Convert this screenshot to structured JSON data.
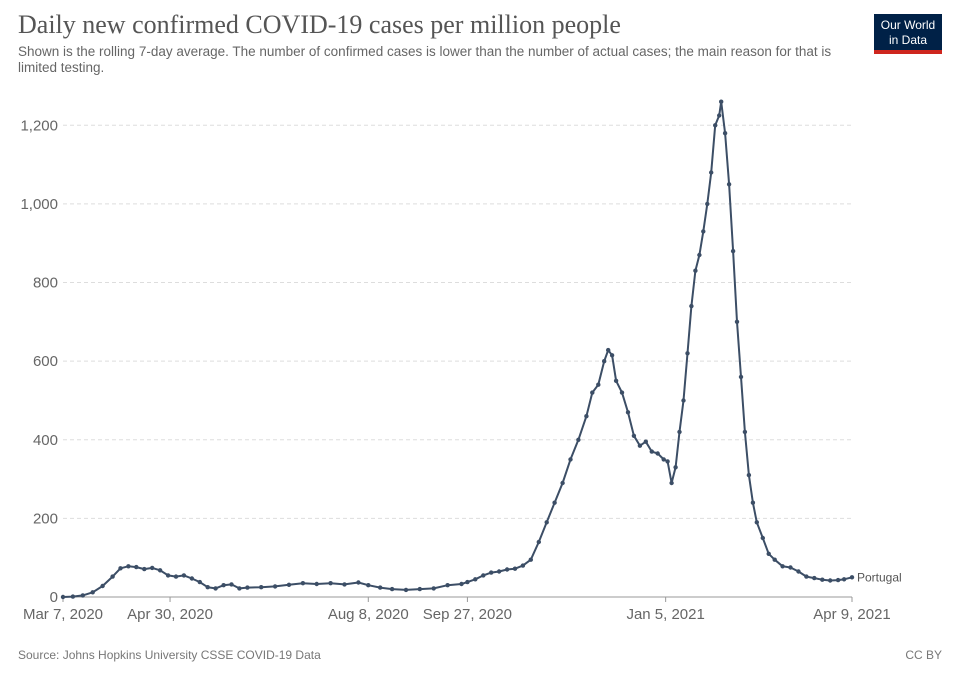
{
  "chart_data": {
    "type": "line",
    "title": "Daily new confirmed COVID-19 cases per million people",
    "subtitle": "Shown is the rolling 7-day average. The number of confirmed cases is lower than the number of actual cases; the main reason for that is limited testing.",
    "source": "Source: Johns Hopkins University CSSE COVID-19 Data",
    "license": "CC BY",
    "logo_text": [
      "Our World",
      "in Data"
    ],
    "colors": {
      "series": "#3c4e66",
      "grid": "#dddddd",
      "logo_bg": "#002147",
      "logo_accent": "#ce261e"
    },
    "x_range": [
      "2020-03-07",
      "2021-04-09"
    ],
    "ylim": [
      0,
      1300
    ],
    "y_ticks": [
      {
        "value": 0,
        "label": "0"
      },
      {
        "value": 200,
        "label": "200"
      },
      {
        "value": 400,
        "label": "400"
      },
      {
        "value": 600,
        "label": "600"
      },
      {
        "value": 800,
        "label": "800"
      },
      {
        "value": 1000,
        "label": "1,000"
      },
      {
        "value": 1200,
        "label": "1,200"
      }
    ],
    "x_ticks": [
      {
        "date": "2020-03-07",
        "label": "Mar 7, 2020"
      },
      {
        "date": "2020-04-30",
        "label": "Apr 30, 2020"
      },
      {
        "date": "2020-08-08",
        "label": "Aug 8, 2020"
      },
      {
        "date": "2020-09-27",
        "label": "Sep 27, 2020"
      },
      {
        "date": "2021-01-05",
        "label": "Jan 5, 2021"
      },
      {
        "date": "2021-04-09",
        "label": "Apr 9, 2021"
      }
    ],
    "grid": true,
    "series": [
      {
        "name": "Portugal",
        "points": [
          [
            "2020-03-07",
            0
          ],
          [
            "2020-03-12",
            1
          ],
          [
            "2020-03-17",
            4
          ],
          [
            "2020-03-22",
            12
          ],
          [
            "2020-03-27",
            28
          ],
          [
            "2020-04-01",
            52
          ],
          [
            "2020-04-05",
            73
          ],
          [
            "2020-04-09",
            78
          ],
          [
            "2020-04-13",
            76
          ],
          [
            "2020-04-17",
            71
          ],
          [
            "2020-04-21",
            74
          ],
          [
            "2020-04-25",
            68
          ],
          [
            "2020-04-29",
            55
          ],
          [
            "2020-05-03",
            52
          ],
          [
            "2020-05-07",
            55
          ],
          [
            "2020-05-11",
            47
          ],
          [
            "2020-05-15",
            38
          ],
          [
            "2020-05-19",
            25
          ],
          [
            "2020-05-23",
            22
          ],
          [
            "2020-05-27",
            30
          ],
          [
            "2020-05-31",
            32
          ],
          [
            "2020-06-04",
            22
          ],
          [
            "2020-06-08",
            24
          ],
          [
            "2020-06-15",
            25
          ],
          [
            "2020-06-22",
            27
          ],
          [
            "2020-06-29",
            31
          ],
          [
            "2020-07-06",
            35
          ],
          [
            "2020-07-13",
            33
          ],
          [
            "2020-07-20",
            35
          ],
          [
            "2020-07-27",
            32
          ],
          [
            "2020-08-03",
            37
          ],
          [
            "2020-08-08",
            30
          ],
          [
            "2020-08-14",
            24
          ],
          [
            "2020-08-20",
            20
          ],
          [
            "2020-08-27",
            18
          ],
          [
            "2020-09-03",
            20
          ],
          [
            "2020-09-10",
            22
          ],
          [
            "2020-09-17",
            30
          ],
          [
            "2020-09-24",
            33
          ],
          [
            "2020-09-27",
            38
          ],
          [
            "2020-10-01",
            45
          ],
          [
            "2020-10-05",
            55
          ],
          [
            "2020-10-09",
            62
          ],
          [
            "2020-10-13",
            65
          ],
          [
            "2020-10-17",
            70
          ],
          [
            "2020-10-21",
            72
          ],
          [
            "2020-10-25",
            80
          ],
          [
            "2020-10-29",
            95
          ],
          [
            "2020-11-02",
            140
          ],
          [
            "2020-11-06",
            190
          ],
          [
            "2020-11-10",
            240
          ],
          [
            "2020-11-14",
            290
          ],
          [
            "2020-11-18",
            350
          ],
          [
            "2020-11-22",
            400
          ],
          [
            "2020-11-26",
            460
          ],
          [
            "2020-11-29",
            520
          ],
          [
            "2020-12-02",
            540
          ],
          [
            "2020-12-05",
            600
          ],
          [
            "2020-12-07",
            628
          ],
          [
            "2020-12-09",
            615
          ],
          [
            "2020-12-11",
            550
          ],
          [
            "2020-12-14",
            520
          ],
          [
            "2020-12-17",
            470
          ],
          [
            "2020-12-20",
            410
          ],
          [
            "2020-12-23",
            385
          ],
          [
            "2020-12-26",
            395
          ],
          [
            "2020-12-29",
            370
          ],
          [
            "2021-01-01",
            365
          ],
          [
            "2021-01-04",
            350
          ],
          [
            "2021-01-06",
            345
          ],
          [
            "2021-01-08",
            290
          ],
          [
            "2021-01-10",
            330
          ],
          [
            "2021-01-12",
            420
          ],
          [
            "2021-01-14",
            500
          ],
          [
            "2021-01-16",
            620
          ],
          [
            "2021-01-18",
            740
          ],
          [
            "2021-01-20",
            830
          ],
          [
            "2021-01-22",
            870
          ],
          [
            "2021-01-24",
            930
          ],
          [
            "2021-01-26",
            1000
          ],
          [
            "2021-01-28",
            1080
          ],
          [
            "2021-01-30",
            1200
          ],
          [
            "2021-02-01",
            1225
          ],
          [
            "2021-02-02",
            1260
          ],
          [
            "2021-02-04",
            1180
          ],
          [
            "2021-02-06",
            1050
          ],
          [
            "2021-02-08",
            880
          ],
          [
            "2021-02-10",
            700
          ],
          [
            "2021-02-12",
            560
          ],
          [
            "2021-02-14",
            420
          ],
          [
            "2021-02-16",
            310
          ],
          [
            "2021-02-18",
            240
          ],
          [
            "2021-02-20",
            190
          ],
          [
            "2021-02-23",
            150
          ],
          [
            "2021-02-26",
            110
          ],
          [
            "2021-03-01",
            95
          ],
          [
            "2021-03-05",
            78
          ],
          [
            "2021-03-09",
            75
          ],
          [
            "2021-03-13",
            65
          ],
          [
            "2021-03-17",
            52
          ],
          [
            "2021-03-21",
            48
          ],
          [
            "2021-03-25",
            44
          ],
          [
            "2021-03-29",
            42
          ],
          [
            "2021-04-02",
            43
          ],
          [
            "2021-04-05",
            45
          ],
          [
            "2021-04-09",
            50
          ]
        ]
      }
    ]
  }
}
